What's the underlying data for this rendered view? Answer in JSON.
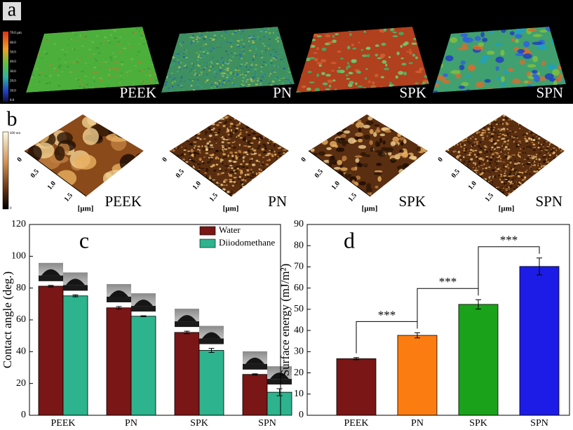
{
  "panel_a": {
    "label": "a",
    "samples": [
      "PEEK",
      "PN",
      "SPK",
      "SPN"
    ],
    "scale_labels": [
      "70.0 µm",
      "60.0",
      "50.0",
      "40.0",
      "30.0",
      "20.0",
      "10.0",
      "0.0"
    ]
  },
  "panel_b": {
    "label": "b",
    "samples": [
      "PEEK",
      "PN",
      "SPK",
      "SPN"
    ],
    "scale_labels": [
      "400 nm",
      "0"
    ],
    "axis_ticks": [
      "0",
      "0.5",
      "1.0",
      "1.5"
    ],
    "axis_unit": "[µm]"
  },
  "chart_data": [
    {
      "type": "bar",
      "panel_label": "c",
      "ylabel": "Contact angle (deg.)",
      "categories": [
        "PEEK",
        "PN",
        "SPK",
        "SPN"
      ],
      "series": [
        {
          "name": "Water",
          "color": "#7a1616",
          "values": [
            81.2,
            67.6,
            52.1,
            25.7
          ],
          "errors": [
            0.5,
            0.8,
            0.8,
            0.4
          ]
        },
        {
          "name": "Diiodomethane",
          "color": "#2db38e",
          "values": [
            75.1,
            62.3,
            40.8,
            14.5
          ],
          "errors": [
            0.6,
            0.3,
            1.3,
            2.2
          ]
        }
      ],
      "ylim": [
        0,
        120
      ],
      "yticks": [
        0,
        20,
        40,
        60,
        80,
        100,
        120
      ],
      "legend": "upper right"
    },
    {
      "type": "bar",
      "panel_label": "d",
      "ylabel": "Surface energy (mJ/m²)",
      "categories": [
        "PEEK",
        "PN",
        "SPK",
        "SPN"
      ],
      "colors": [
        "#7a1616",
        "#fb7d12",
        "#1aa31a",
        "#1c1ce6"
      ],
      "values": [
        26.7,
        37.7,
        52.3,
        70.2
      ],
      "errors": [
        0.5,
        1.2,
        2.2,
        4.0
      ],
      "ylim": [
        0,
        90
      ],
      "yticks": [
        0,
        10,
        20,
        30,
        40,
        50,
        60,
        70,
        80,
        90
      ],
      "annotations": [
        "***",
        "***",
        "***"
      ]
    }
  ]
}
